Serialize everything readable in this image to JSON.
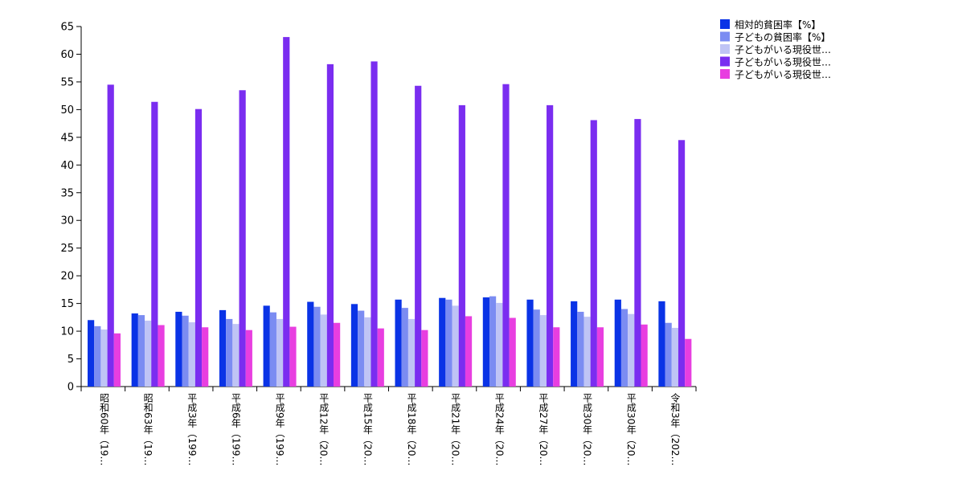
{
  "chart_data": {
    "type": "bar",
    "ylim": [
      0,
      65
    ],
    "yticks": [
      0,
      5,
      10,
      15,
      20,
      25,
      30,
      35,
      40,
      45,
      50,
      55,
      60,
      65
    ],
    "categories": [
      "昭和60年（19…",
      "昭和63年（19…",
      "平成3年（199…",
      "平成6年（199…",
      "平成9年（199…",
      "平成12年（20…",
      "平成15年（20…",
      "平成18年（20…",
      "平成21年（20…",
      "平成24年（20…",
      "平成27年（20…",
      "平成30年（20…",
      "平成30年（20…",
      "令和3年（202…"
    ],
    "legend_position": "top-right",
    "series": [
      {
        "name": "相対的貧困率【%】",
        "color": "#0a33e6",
        "values": [
          12.0,
          13.2,
          13.5,
          13.8,
          14.6,
          15.3,
          14.9,
          15.7,
          16.0,
          16.1,
          15.7,
          15.4,
          15.7,
          15.4
        ]
      },
      {
        "name": "子どもの貧困率【%】",
        "color": "#7b8cf2",
        "values": [
          10.9,
          12.9,
          12.8,
          12.2,
          13.4,
          14.4,
          13.7,
          14.2,
          15.7,
          16.3,
          13.9,
          13.5,
          14.0,
          11.5
        ]
      },
      {
        "name": "子どもがいる現役世…",
        "color": "#bfc4f5",
        "values": [
          10.3,
          11.9,
          11.6,
          11.3,
          12.2,
          13.0,
          12.5,
          12.2,
          14.6,
          15.1,
          12.9,
          12.6,
          13.1,
          10.6
        ]
      },
      {
        "name": "子どもがいる現役世…",
        "color": "#7a2df0",
        "values": [
          54.5,
          51.4,
          50.1,
          53.5,
          63.1,
          58.2,
          58.7,
          54.3,
          50.8,
          54.6,
          50.8,
          48.1,
          48.3,
          44.5
        ]
      },
      {
        "name": "子どもがいる現役世…",
        "color": "#e83ee0",
        "values": [
          9.6,
          11.1,
          10.7,
          10.2,
          10.8,
          11.5,
          10.5,
          10.2,
          12.7,
          12.4,
          10.7,
          10.7,
          11.2,
          8.6
        ]
      }
    ]
  }
}
